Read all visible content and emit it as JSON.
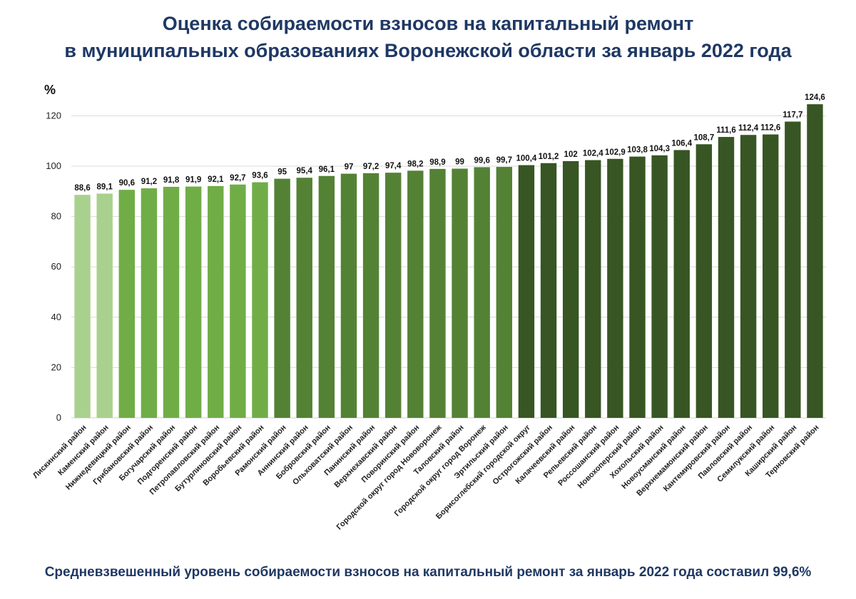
{
  "title": {
    "line1": "Оценка собираемости взносов на капитальный ремонт",
    "line2": "в муниципальных образованиях Воронежской области за январь 2022 года"
  },
  "footer": "Средневзвешенный уровень собираемости взносов на капитальный ремонт за январь 2022 года составил 99,6%",
  "chart_data": {
    "type": "bar",
    "title": "Оценка собираемости взносов на капитальный ремонт в муниципальных образованиях Воронежской области за январь 2022 года",
    "ylabel": "%",
    "xlabel": "",
    "ylim": [
      0,
      125
    ],
    "yticks": [
      0,
      20,
      40,
      60,
      80,
      100,
      120
    ],
    "grid": true,
    "legend": "none",
    "categories": [
      "Лискинский район",
      "Каменский район",
      "Нижнедевицкий район",
      "Грибановский район",
      "Богучарский район",
      "Подгоренский район",
      "Петропавловский район",
      "Бутурлиновский район",
      "Воробьевский район",
      "Рамонский район",
      "Аннинский район",
      "Бобровский район",
      "Ольховатский район",
      "Панинский район",
      "Верхнехавский район",
      "Поворинский район",
      "Городской округ город Нововоронеж",
      "Таловский район",
      "Городской округ город Воронеж",
      "Эртильский район",
      "Борисоглебский городской округ",
      "Острогожский район",
      "Калачеевский район",
      "Репьевский район",
      "Россошанский район",
      "Новохоперский район",
      "Хохольский район",
      "Новоусманский район",
      "Верхнемамонский район",
      "Кантемировский район",
      "Павловский район",
      "Семилукский район",
      "Каширский район",
      "Терновский район"
    ],
    "values": [
      88.6,
      89.1,
      90.6,
      91.2,
      91.8,
      91.9,
      92.1,
      92.7,
      93.6,
      95,
      95.4,
      96.1,
      97,
      97.2,
      97.4,
      98.2,
      98.9,
      99,
      99.6,
      99.7,
      100.4,
      101.2,
      102,
      102.4,
      102.9,
      103.8,
      104.3,
      106.4,
      108.7,
      111.6,
      112.4,
      112.6,
      117.7,
      124.6
    ],
    "value_labels": [
      "88,6",
      "89,1",
      "90,6",
      "91,2",
      "91,8",
      "91,9",
      "92,1",
      "92,7",
      "93,6",
      "95",
      "95,4",
      "96,1",
      "97",
      "97,2",
      "97,4",
      "98,2",
      "98,9",
      "99",
      "99,6",
      "99,7",
      "100,4",
      "101,2",
      "102",
      "102,4",
      "102,9",
      "103,8",
      "104,3",
      "106,4",
      "108,7",
      "111,6",
      "112,4",
      "112,6",
      "117,7",
      "124,6"
    ],
    "colors": {
      "light_green": "#a9d18e",
      "medium_green": "#70ad47",
      "dark_green": "#548235",
      "darkest_green": "#375623",
      "gridline": "#d9d9d9",
      "title": "#1f3864"
    }
  }
}
